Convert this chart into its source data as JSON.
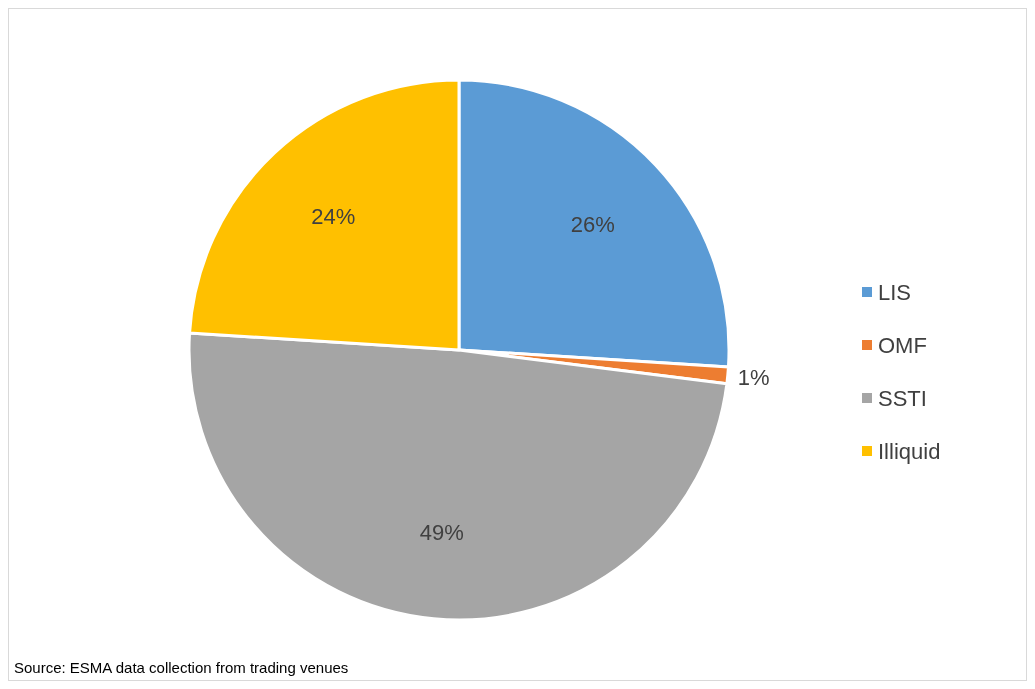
{
  "chart_data": {
    "type": "pie",
    "categories": [
      "LIS",
      "OMF",
      "SSTI",
      "Illiquid"
    ],
    "values": [
      26,
      1,
      49,
      24
    ],
    "colors": [
      "#5b9bd5",
      "#ed7d31",
      "#a5a5a5",
      "#ffc000"
    ],
    "value_labels": [
      "26%",
      "1%",
      "49%",
      "24%"
    ],
    "legend": "right",
    "annotations": [
      "Source: ESMA data collection from trading venues"
    ]
  }
}
